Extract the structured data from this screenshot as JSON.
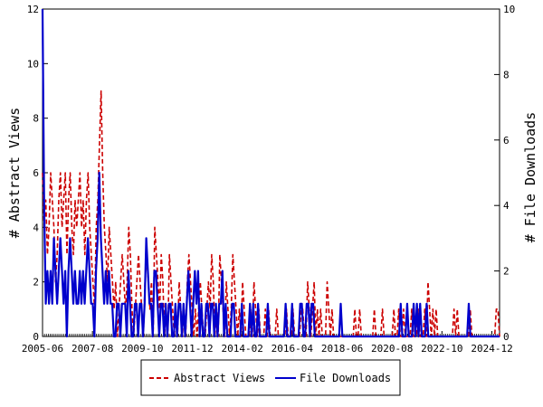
{
  "chart_data": {
    "type": "line",
    "title": "",
    "ylabel": "# Abstract Views",
    "y2label": "# File Downloads",
    "ylim": [
      0,
      12
    ],
    "y2lim": [
      0,
      10
    ],
    "yticks": [
      "0",
      "2",
      "4",
      "6",
      "8",
      "10",
      "12"
    ],
    "y2ticks": [
      "0",
      "2",
      "4",
      "6",
      "8",
      "10"
    ],
    "xticks": [
      "2005-06",
      "2007-08",
      "2009-10",
      "2011-12",
      "2014-02",
      "2016-04",
      "2018-06",
      "2020-08",
      "2022-10",
      "2024-12"
    ],
    "x_start": "2005-06",
    "x_end": "2025-04",
    "legend_position": "bottom",
    "grid": false,
    "series": [
      {
        "name": "Abstract Views",
        "color": "#cc0000",
        "style": "dashed",
        "axis": "left",
        "values": [
          6,
          4,
          5,
          3,
          4,
          6,
          5,
          4,
          2,
          3,
          5,
          6,
          4,
          5,
          6,
          3,
          5,
          6,
          4,
          3,
          5,
          4,
          5,
          6,
          4,
          5,
          3,
          5,
          6,
          4,
          3,
          2,
          1,
          4,
          5,
          7,
          9,
          6,
          4,
          3,
          2,
          4,
          3,
          2,
          1,
          2,
          0,
          1,
          2,
          3,
          2,
          1,
          2,
          4,
          3,
          1,
          0,
          1,
          2,
          3,
          2,
          1,
          0,
          2,
          3,
          2,
          1,
          2,
          0,
          4,
          3,
          2,
          1,
          3,
          2,
          0,
          1,
          0,
          3,
          2,
          1,
          0,
          1,
          0,
          2,
          1,
          0,
          1,
          0,
          2,
          3,
          2,
          1,
          0,
          1,
          0,
          1,
          2,
          1,
          0,
          0,
          1,
          2,
          1,
          3,
          2,
          0,
          1,
          0,
          3,
          2,
          1,
          0,
          2,
          1,
          0,
          1,
          3,
          2,
          1,
          0,
          1,
          0,
          2,
          1,
          0,
          0,
          0,
          1,
          0,
          2,
          1,
          0,
          1,
          0,
          0,
          0,
          1,
          0,
          1,
          0,
          0,
          0,
          0,
          1,
          0,
          0,
          0,
          0,
          0,
          1,
          0,
          0,
          0,
          1,
          0,
          0,
          0,
          0,
          1,
          1,
          0,
          0,
          2,
          1,
          0,
          1,
          2,
          0,
          1,
          0,
          1,
          0,
          0,
          0,
          2,
          1,
          0,
          1,
          0,
          0,
          0,
          0,
          0,
          0,
          0,
          0,
          0,
          0,
          0,
          0,
          0,
          1,
          0,
          0,
          1,
          0,
          0,
          0,
          0,
          0,
          0,
          0,
          0,
          1,
          0,
          0,
          0,
          0,
          1,
          0,
          0,
          0,
          0,
          0,
          0,
          1,
          0,
          0,
          1,
          0,
          0,
          1,
          0,
          0,
          0,
          0,
          1,
          0,
          0,
          0,
          1,
          0,
          0,
          0,
          1,
          0,
          2,
          1,
          0,
          1,
          0,
          1,
          0,
          0,
          0,
          0,
          0,
          0,
          0,
          0,
          0,
          0,
          1,
          0,
          1,
          0,
          0,
          0,
          0,
          0,
          0,
          0,
          1,
          0,
          0,
          0,
          0,
          0,
          0,
          0,
          0,
          0,
          0,
          0,
          0,
          0,
          0,
          0,
          1,
          1,
          0
        ]
      },
      {
        "name": "File Downloads",
        "color": "#0000cc",
        "style": "solid",
        "axis": "right",
        "values": [
          10,
          4,
          1,
          2,
          1,
          2,
          1,
          3,
          2,
          1,
          2,
          3,
          2,
          1,
          2,
          0,
          2,
          3,
          2,
          1,
          2,
          1,
          1,
          2,
          1,
          2,
          1,
          2,
          3,
          2,
          1,
          1,
          0,
          2,
          3,
          5,
          3,
          2,
          1,
          2,
          1,
          2,
          1,
          1,
          0,
          0,
          1,
          1,
          0,
          1,
          1,
          1,
          0,
          2,
          1,
          0,
          0,
          1,
          1,
          0,
          1,
          1,
          0,
          1,
          3,
          2,
          1,
          1,
          0,
          2,
          2,
          1,
          0,
          1,
          1,
          0,
          1,
          0,
          1,
          1,
          0,
          0,
          1,
          0,
          1,
          1,
          0,
          1,
          0,
          1,
          2,
          1,
          0,
          1,
          2,
          1,
          2,
          0,
          1,
          0,
          0,
          1,
          1,
          0,
          1,
          1,
          0,
          1,
          0,
          1,
          1,
          2,
          0,
          1,
          0,
          0,
          0,
          1,
          1,
          0,
          0,
          0,
          0,
          1,
          0,
          0,
          0,
          0,
          1,
          0,
          1,
          0,
          0,
          1,
          0,
          0,
          0,
          0,
          0,
          1,
          0,
          0,
          0,
          0,
          0,
          0,
          0,
          0,
          0,
          0,
          1,
          0,
          0,
          0,
          1,
          0,
          0,
          0,
          0,
          1,
          1,
          0,
          0,
          1,
          1,
          0,
          1,
          1,
          0,
          0,
          0,
          0,
          0,
          0,
          0,
          0,
          0,
          0,
          0,
          0,
          0,
          0,
          0,
          0,
          1,
          0,
          0,
          0,
          0,
          0,
          0,
          0,
          0,
          0,
          0,
          0,
          0,
          0,
          0,
          0,
          0,
          0,
          0,
          0,
          0,
          0,
          0,
          0,
          0,
          0,
          0,
          0,
          0,
          0,
          0,
          0,
          0,
          0,
          0,
          0,
          0,
          1,
          0,
          0,
          0,
          1,
          0,
          0,
          0,
          1,
          0,
          1,
          0,
          1,
          0,
          0,
          0,
          1,
          0,
          0,
          0,
          0,
          0,
          0,
          0,
          0,
          0,
          0,
          0,
          0,
          0,
          0,
          0,
          0,
          0,
          0,
          0,
          0,
          0,
          0,
          0,
          0,
          0,
          1,
          0,
          0,
          0,
          0,
          0,
          0,
          0,
          0,
          0,
          0,
          0,
          0,
          0,
          0,
          0,
          0,
          0,
          0,
          0
        ]
      }
    ]
  }
}
